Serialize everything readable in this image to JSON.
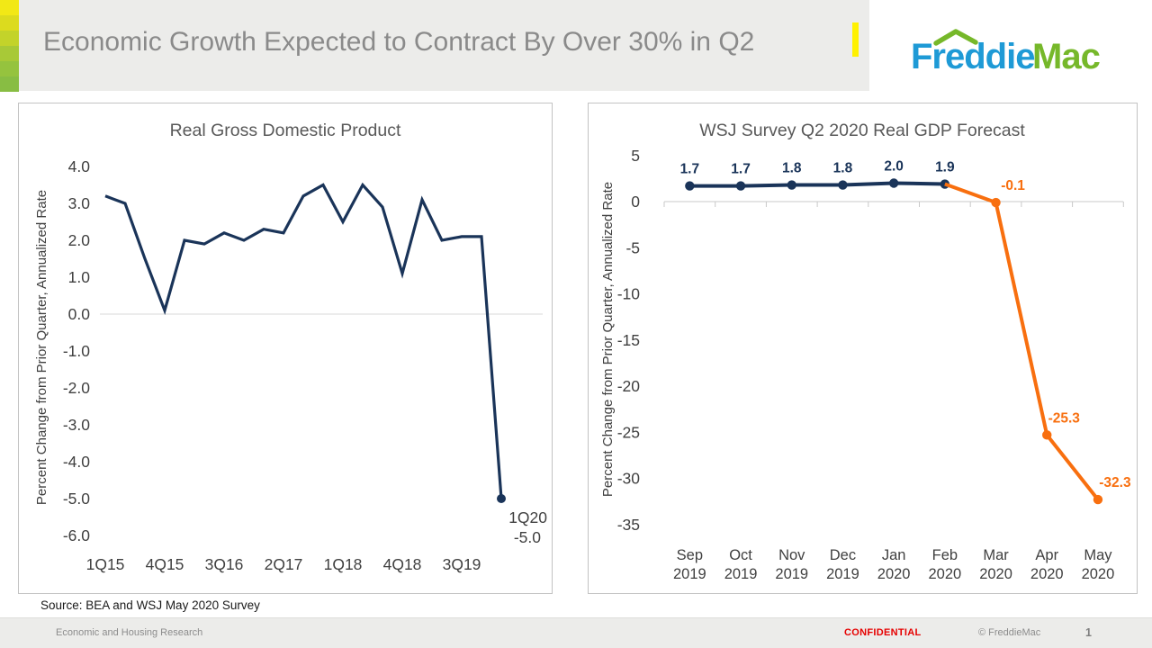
{
  "slide": {
    "title": "Economic Growth Expected to Contract By Over 30% in Q2",
    "title_color": "#8A8A8A",
    "accent_color": "#FFF101",
    "stripe_colors": [
      "#F2E816",
      "#DCDB1E",
      "#C3D32A",
      "#A8C937",
      "#95C33E",
      "#88BD43"
    ],
    "logo": {
      "word1": "Freddie",
      "word2": "Mac",
      "blue": "#1E9AD6",
      "green": "#76B82A"
    },
    "source_note": "Source: BEA and WSJ May 2020 Survey",
    "footer": {
      "left": "Economic and Housing Research",
      "confidential": "CONFIDENTIAL",
      "confidential_color": "#E60000",
      "copyright": "© FreddieMac",
      "page_number": "1"
    }
  },
  "chart_data": [
    {
      "type": "line",
      "title": "Real Gross Domestic Product",
      "ylabel": "Percent Change from Prior Quarter, Annualized Rate",
      "line_color": "#1A3459",
      "grid_color": "#D9D9D9",
      "ylim": [
        -6,
        4
      ],
      "gridline_at": 0,
      "legend": "none",
      "categories": [
        "1Q15",
        "2Q15",
        "3Q15",
        "4Q15",
        "1Q16",
        "2Q16",
        "3Q16",
        "4Q16",
        "1Q17",
        "2Q17",
        "3Q17",
        "4Q17",
        "1Q18",
        "2Q18",
        "3Q18",
        "4Q18",
        "1Q19",
        "2Q19",
        "3Q19",
        "4Q19",
        "1Q20"
      ],
      "values": [
        3.2,
        3.0,
        1.5,
        0.1,
        2.0,
        1.9,
        2.2,
        2.0,
        2.3,
        2.2,
        3.2,
        3.5,
        2.5,
        3.5,
        2.9,
        1.1,
        3.1,
        2.0,
        2.1,
        2.1,
        -5.0
      ],
      "y_tick_values": [
        4,
        3,
        2,
        1,
        0,
        -1,
        -2,
        -3,
        -4,
        -5,
        -6
      ],
      "y_tick_labels": [
        "4.0",
        "3.0",
        "2.0",
        "1.0",
        "0.0",
        "-1.0",
        "-2.0",
        "-3.0",
        "-4.0",
        "-5.0",
        "-6.0"
      ],
      "x_tick_indices": [
        0,
        3,
        6,
        9,
        12,
        15,
        18
      ],
      "x_tick_labels": [
        "1Q15",
        "4Q15",
        "3Q16",
        "2Q17",
        "1Q18",
        "4Q18",
        "3Q19"
      ],
      "end_point_label": {
        "line1": "1Q20",
        "line2": "-5.0"
      }
    },
    {
      "type": "line",
      "title": "WSJ Survey Q2 2020 Real GDP Forecast",
      "ylabel": "Percent Change from Prior Quarter, Annualized Rate",
      "axis_color": "#C9C9C9",
      "ylim": [
        -35,
        5
      ],
      "axis_at": 0,
      "legend": "none",
      "categories": [
        "Sep 2019",
        "Oct 2019",
        "Nov 2019",
        "Dec 2019",
        "Jan 2020",
        "Feb 2020",
        "Mar 2020",
        "Apr 2020",
        "May 2020"
      ],
      "y_tick_values": [
        5,
        0,
        -5,
        -10,
        -15,
        -20,
        -25,
        -30,
        -35
      ],
      "y_tick_labels": [
        "5",
        "0",
        "-5",
        "-10",
        "-15",
        "-20",
        "-25",
        "-30",
        "-35"
      ],
      "series": [
        {
          "name": "survey-history",
          "color": "#1A3459",
          "start_index": 0,
          "values": [
            1.7,
            1.7,
            1.8,
            1.8,
            2.0,
            1.9
          ],
          "data_labels": [
            "1.7",
            "1.7",
            "1.8",
            "1.8",
            "2.0",
            "1.9"
          ],
          "markers_from": 0
        },
        {
          "name": "survey-forecast",
          "color": "#F86F0F",
          "start_index": 5,
          "values": [
            1.9,
            -0.1,
            -25.3,
            -32.3
          ],
          "data_labels": [
            null,
            "-0.1",
            "-25.3",
            "-32.3"
          ],
          "markers_from": 1
        }
      ]
    }
  ]
}
